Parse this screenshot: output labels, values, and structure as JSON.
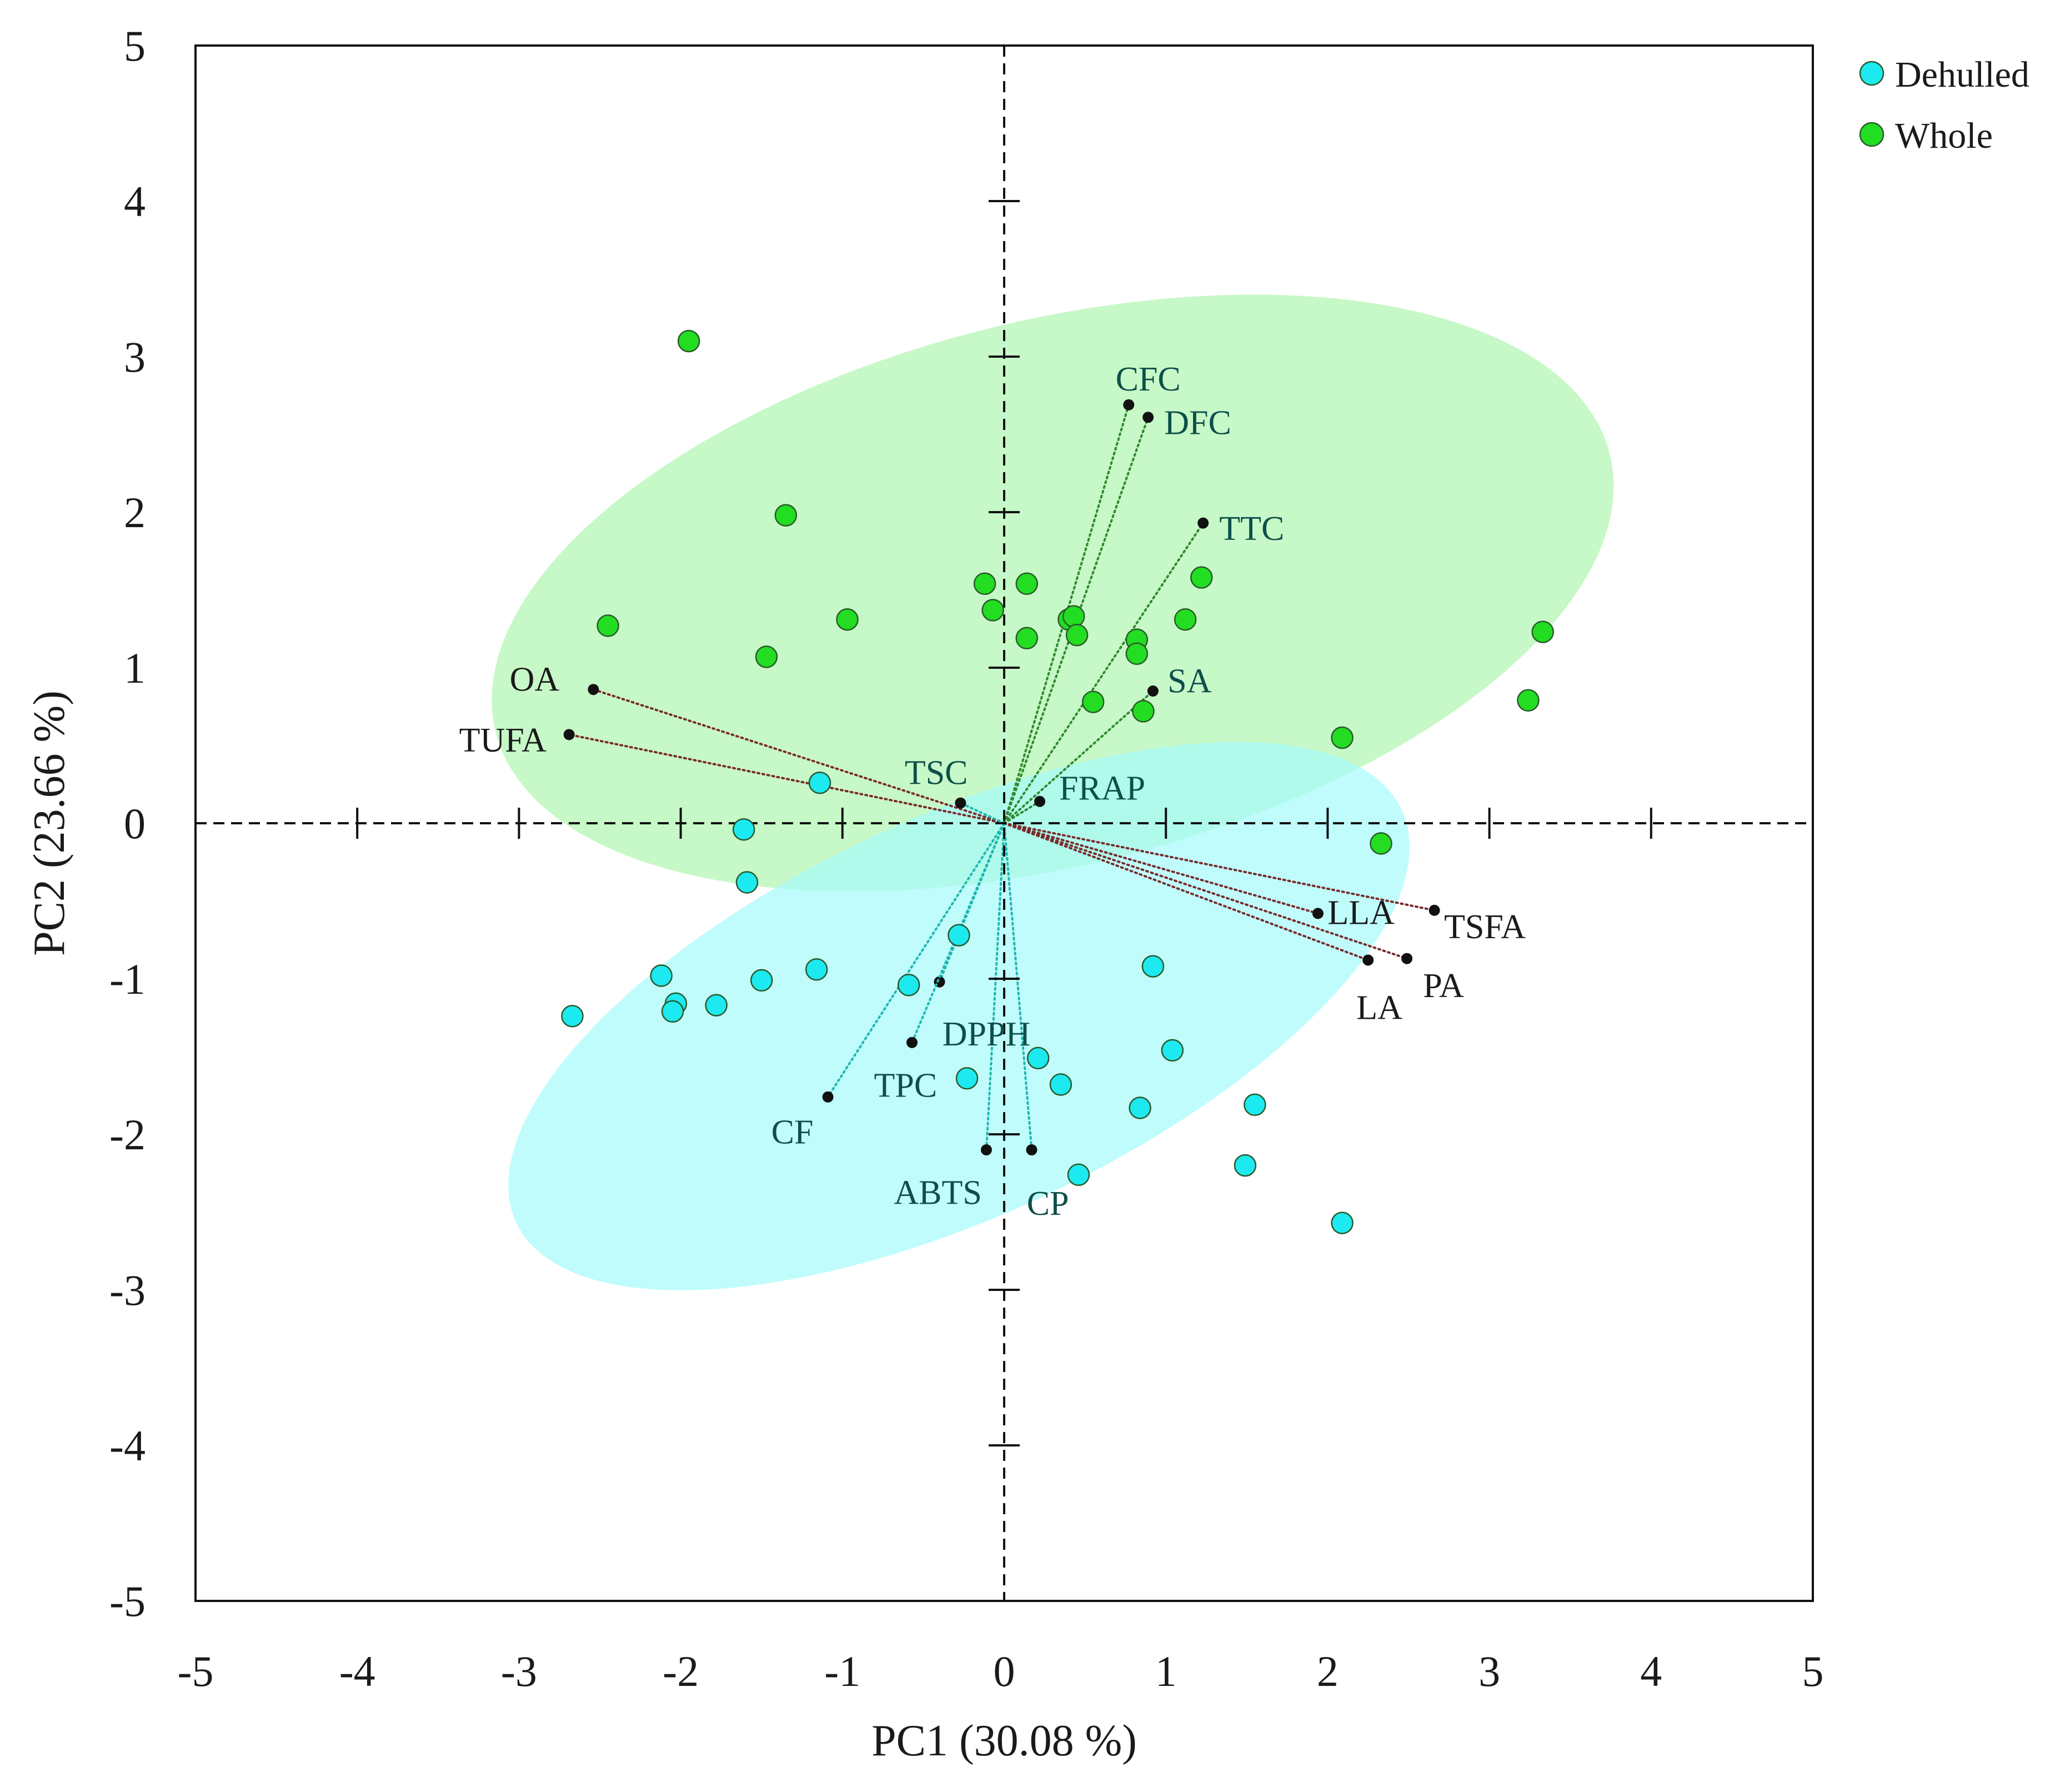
{
  "chart_data": {
    "type": "scatter",
    "subtype": "pca-biplot",
    "title": "",
    "xlabel": "PC1 (30.08 %)",
    "ylabel": "PC2 (23.66 %)",
    "xlim": [
      -5,
      5
    ],
    "ylim": [
      -5,
      5
    ],
    "xticks": [
      -5,
      -4,
      -3,
      -2,
      -1,
      0,
      1,
      2,
      3,
      4,
      5
    ],
    "yticks": [
      -5,
      -4,
      -3,
      -2,
      -1,
      0,
      1,
      2,
      3,
      4,
      5
    ],
    "grid": false,
    "legend_position": "top-right",
    "series": [
      {
        "name": "Dehulled",
        "color": "#1de9f0",
        "ellipse_color": "#a8fbfb",
        "points": [
          [
            -1.14,
            0.26
          ],
          [
            -1.61,
            -0.04
          ],
          [
            -1.59,
            -0.38
          ],
          [
            -2.67,
            -1.24
          ],
          [
            -2.12,
            -0.98
          ],
          [
            -2.03,
            -1.16
          ],
          [
            -2.05,
            -1.21
          ],
          [
            -1.78,
            -1.17
          ],
          [
            -1.5,
            -1.01
          ],
          [
            -1.16,
            -0.94
          ],
          [
            -0.59,
            -1.04
          ],
          [
            -0.28,
            -0.72
          ],
          [
            -0.23,
            -1.64
          ],
          [
            0.21,
            -1.51
          ],
          [
            0.35,
            -1.68
          ],
          [
            0.46,
            -2.26
          ],
          [
            0.84,
            -1.83
          ],
          [
            0.92,
            -0.92
          ],
          [
            1.04,
            -1.46
          ],
          [
            1.49,
            -2.2
          ],
          [
            1.55,
            -1.81
          ],
          [
            2.09,
            -2.57
          ]
        ],
        "ellipse": {
          "cx": -0.28,
          "cy": -1.24,
          "rx": 3.02,
          "ry": 1.28,
          "angle_deg": -25
        }
      },
      {
        "name": "Whole",
        "color": "#22dd22",
        "ellipse_color": "#b2f5b2",
        "points": [
          [
            -1.95,
            3.1
          ],
          [
            -1.35,
            1.98
          ],
          [
            -2.45,
            1.27
          ],
          [
            -1.47,
            1.07
          ],
          [
            -0.97,
            1.31
          ],
          [
            -0.12,
            1.54
          ],
          [
            -0.07,
            1.37
          ],
          [
            0.14,
            1.54
          ],
          [
            0.14,
            1.19
          ],
          [
            0.4,
            1.31
          ],
          [
            0.43,
            1.33
          ],
          [
            0.45,
            1.21
          ],
          [
            0.55,
            0.78
          ],
          [
            0.82,
            1.18
          ],
          [
            0.82,
            1.09
          ],
          [
            0.86,
            0.72
          ],
          [
            1.12,
            1.31
          ],
          [
            1.22,
            1.58
          ],
          [
            2.09,
            0.55
          ],
          [
            2.33,
            -0.13
          ],
          [
            3.24,
            0.79
          ],
          [
            3.33,
            1.23
          ]
        ],
        "ellipse": {
          "cx": 0.3,
          "cy": 1.48,
          "rx": 3.55,
          "ry": 1.75,
          "angle_deg": -14
        }
      }
    ],
    "loadings": [
      {
        "name": "OA",
        "x": -2.54,
        "y": 0.86,
        "color": "#7a2a2a",
        "label_dx": -0.21,
        "label_dy": 0.07,
        "anchor": "end"
      },
      {
        "name": "TUFA",
        "x": -2.69,
        "y": 0.57,
        "color": "#7a2a2a",
        "label_dx": -0.14,
        "label_dy": -0.03,
        "anchor": "end"
      },
      {
        "name": "TSC",
        "x": -0.27,
        "y": 0.13,
        "color": "#1fb8b0",
        "label_dx": -0.15,
        "label_dy": 0.2,
        "anchor": "middle"
      },
      {
        "name": "FRAP",
        "x": 0.22,
        "y": 0.14,
        "color": "#2e8b2e",
        "label_dx": 0.12,
        "label_dy": 0.09,
        "anchor": "start"
      },
      {
        "name": "CFC",
        "x": 0.77,
        "y": 2.69,
        "color": "#2e8b2e",
        "label_dx": 0.12,
        "label_dy": 0.17,
        "anchor": "middle"
      },
      {
        "name": "DFC",
        "x": 0.89,
        "y": 2.61,
        "color": "#2e8b2e",
        "label_dx": 0.1,
        "label_dy": -0.03,
        "anchor": "start"
      },
      {
        "name": "TTC",
        "x": 1.23,
        "y": 1.93,
        "color": "#2e8b2e",
        "label_dx": 0.1,
        "label_dy": -0.03,
        "anchor": "start"
      },
      {
        "name": "SA",
        "x": 0.92,
        "y": 0.85,
        "color": "#2e8b2e",
        "label_dx": 0.09,
        "label_dy": 0.07,
        "anchor": "start"
      },
      {
        "name": "LLA",
        "x": 1.94,
        "y": -0.58,
        "color": "#7a2a2a",
        "label_dx": 0.06,
        "label_dy": 0.01,
        "anchor": "start"
      },
      {
        "name": "TSFA",
        "x": 2.66,
        "y": -0.56,
        "color": "#7a2a2a",
        "label_dx": 0.06,
        "label_dy": -0.1,
        "anchor": "start"
      },
      {
        "name": "LA",
        "x": 2.25,
        "y": -0.88,
        "color": "#7a2a2a",
        "label_dx": 0.07,
        "label_dy": -0.3,
        "anchor": "middle"
      },
      {
        "name": "PA",
        "x": 2.49,
        "y": -0.87,
        "color": "#7a2a2a",
        "label_dx": 0.1,
        "label_dy": -0.17,
        "anchor": "start"
      },
      {
        "name": "DPPH",
        "x": -0.4,
        "y": -1.02,
        "color": "#1fb8b0",
        "label_dx": 0.29,
        "label_dy": -0.33,
        "anchor": "middle"
      },
      {
        "name": "TPC",
        "x": -0.57,
        "y": -1.41,
        "color": "#1fb8b0",
        "label_dx": -0.04,
        "label_dy": -0.27,
        "anchor": "middle"
      },
      {
        "name": "CF",
        "x": -1.09,
        "y": -1.76,
        "color": "#1fb8b0",
        "label_dx": -0.22,
        "label_dy": -0.22,
        "anchor": "middle"
      },
      {
        "name": "ABTS",
        "x": -0.11,
        "y": -2.1,
        "color": "#1fb8b0",
        "label_dx": -0.3,
        "label_dy": -0.27,
        "anchor": "middle"
      },
      {
        "name": "CP",
        "x": 0.17,
        "y": -2.1,
        "color": "#1fb8b0",
        "label_dx": 0.1,
        "label_dy": -0.34,
        "anchor": "middle"
      }
    ]
  }
}
